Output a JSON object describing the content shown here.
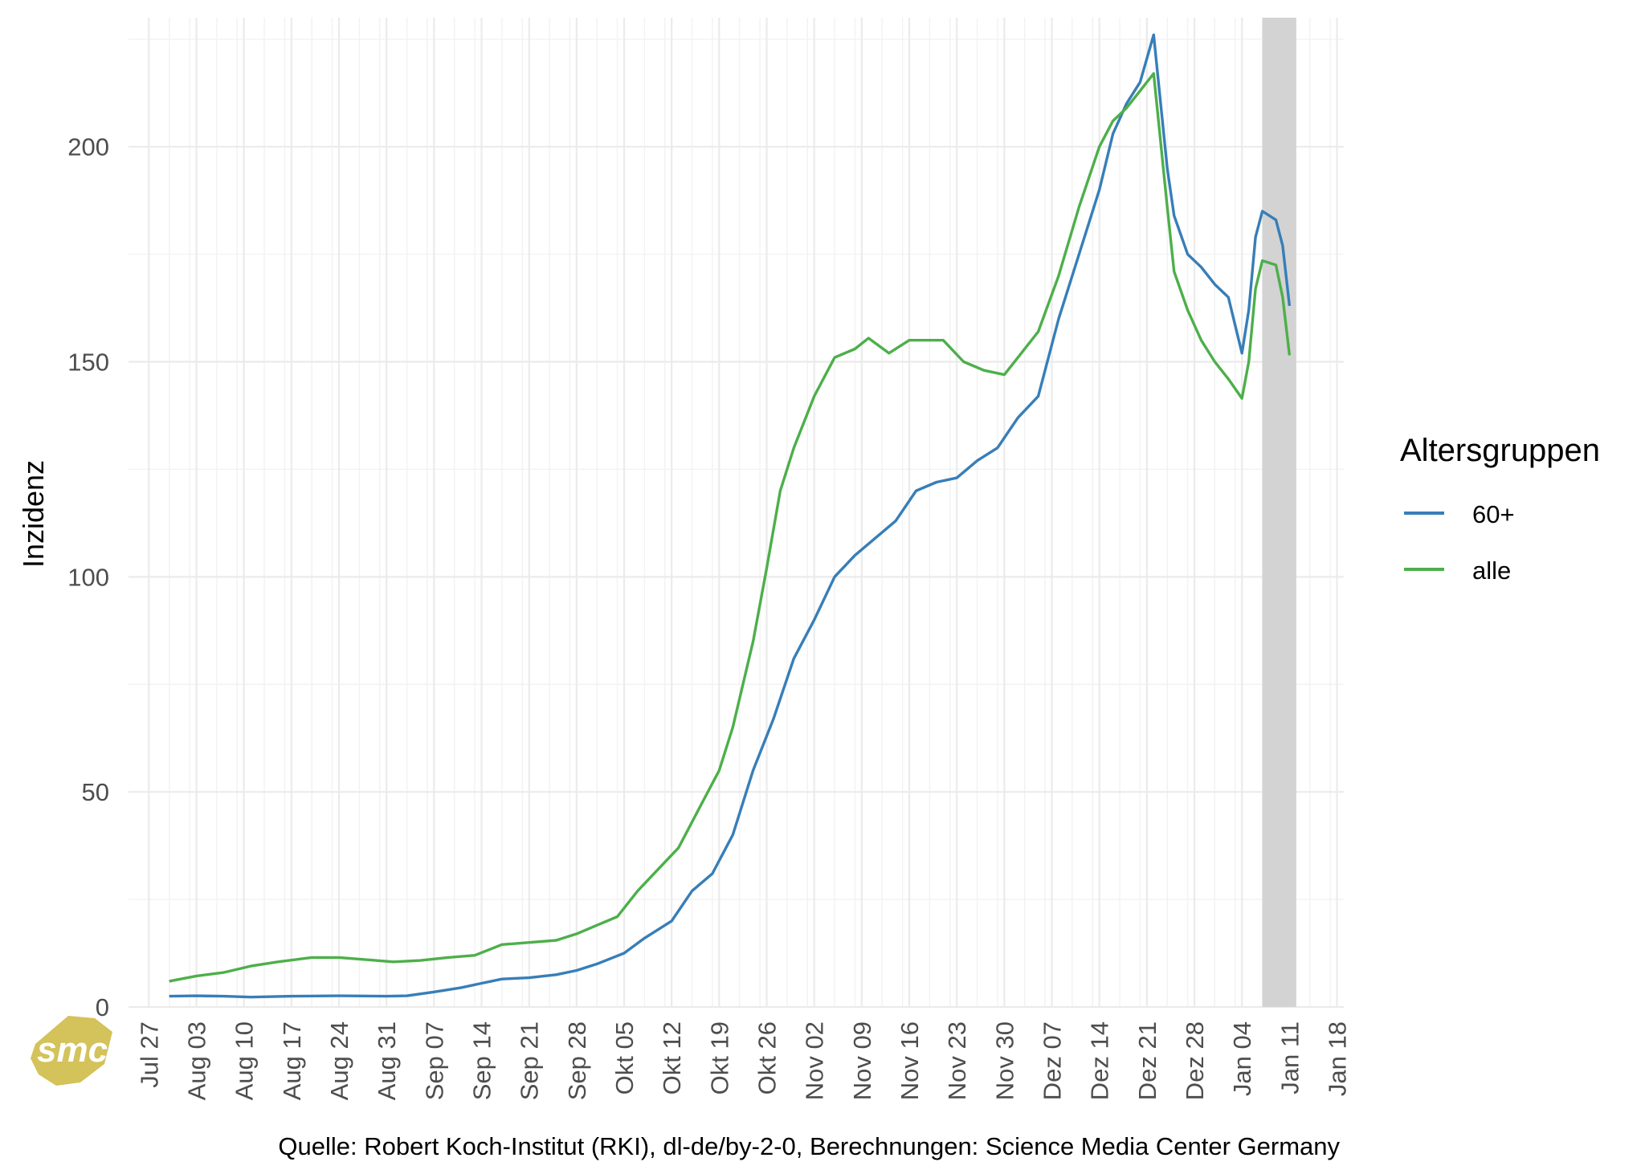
{
  "chart_data": {
    "type": "line",
    "ylabel": "Inzidenz",
    "ylim": [
      0,
      230
    ],
    "yticks": [
      0,
      50,
      100,
      150,
      200
    ],
    "xlim": [
      "2020-07-24",
      "2021-01-19"
    ],
    "x_tick_dates": [
      "2020-07-27",
      "2020-08-03",
      "2020-08-10",
      "2020-08-17",
      "2020-08-24",
      "2020-08-31",
      "2020-09-07",
      "2020-09-14",
      "2020-09-21",
      "2020-09-28",
      "2020-10-05",
      "2020-10-12",
      "2020-10-19",
      "2020-10-26",
      "2020-11-02",
      "2020-11-09",
      "2020-11-16",
      "2020-11-23",
      "2020-11-30",
      "2020-12-07",
      "2020-12-14",
      "2020-12-21",
      "2020-12-28",
      "2021-01-04",
      "2021-01-11",
      "2021-01-18"
    ],
    "x_tick_labels": [
      "Jul 27",
      "Aug 03",
      "Aug 10",
      "Aug 17",
      "Aug 24",
      "Aug 31",
      "Sep 07",
      "Sep 14",
      "Sep 21",
      "Sep 28",
      "Okt 05",
      "Okt 12",
      "Okt 19",
      "Okt 26",
      "Nov 02",
      "Nov 09",
      "Nov 16",
      "Nov 23",
      "Nov 30",
      "Dez 07",
      "Dez 14",
      "Dez 21",
      "Dez 28",
      "Jan 04",
      "Jan 11",
      "Jan 18"
    ],
    "grid": true,
    "shaded_region": {
      "from": "2021-01-07",
      "to": "2021-01-12",
      "color": "#d3d3d3"
    },
    "legend": {
      "title": "Altersgruppen",
      "position": "right"
    },
    "series": [
      {
        "name": "60+",
        "color": "#377eb8",
        "points": [
          [
            "2020-07-30",
            2.5
          ],
          [
            "2020-08-03",
            2.6
          ],
          [
            "2020-08-07",
            2.5
          ],
          [
            "2020-08-11",
            2.3
          ],
          [
            "2020-08-17",
            2.5
          ],
          [
            "2020-08-24",
            2.6
          ],
          [
            "2020-08-31",
            2.5
          ],
          [
            "2020-09-03",
            2.6
          ],
          [
            "2020-09-07",
            3.5
          ],
          [
            "2020-09-11",
            4.5
          ],
          [
            "2020-09-14",
            5.5
          ],
          [
            "2020-09-17",
            6.5
          ],
          [
            "2020-09-21",
            6.8
          ],
          [
            "2020-09-25",
            7.5
          ],
          [
            "2020-09-28",
            8.5
          ],
          [
            "2020-10-01",
            10
          ],
          [
            "2020-10-05",
            12.5
          ],
          [
            "2020-10-08",
            16
          ],
          [
            "2020-10-12",
            20
          ],
          [
            "2020-10-15",
            27
          ],
          [
            "2020-10-18",
            31
          ],
          [
            "2020-10-21",
            40
          ],
          [
            "2020-10-24",
            55
          ],
          [
            "2020-10-27",
            67
          ],
          [
            "2020-10-30",
            81
          ],
          [
            "2020-11-02",
            90
          ],
          [
            "2020-11-05",
            100
          ],
          [
            "2020-11-08",
            105
          ],
          [
            "2020-11-11",
            109
          ],
          [
            "2020-11-14",
            113
          ],
          [
            "2020-11-17",
            120
          ],
          [
            "2020-11-20",
            122
          ],
          [
            "2020-11-23",
            123
          ],
          [
            "2020-11-26",
            127
          ],
          [
            "2020-11-29",
            130
          ],
          [
            "2020-12-02",
            137
          ],
          [
            "2020-12-05",
            142
          ],
          [
            "2020-12-08",
            160
          ],
          [
            "2020-12-11",
            175
          ],
          [
            "2020-12-14",
            190
          ],
          [
            "2020-12-16",
            203
          ],
          [
            "2020-12-18",
            210
          ],
          [
            "2020-12-20",
            215
          ],
          [
            "2020-12-22",
            226
          ],
          [
            "2020-12-24",
            195
          ],
          [
            "2020-12-25",
            184
          ],
          [
            "2020-12-27",
            175
          ],
          [
            "2020-12-29",
            172
          ],
          [
            "2020-12-31",
            168
          ],
          [
            "2021-01-02",
            165
          ],
          [
            "2021-01-04",
            152
          ],
          [
            "2021-01-05",
            162
          ],
          [
            "2021-01-06",
            179
          ],
          [
            "2021-01-07",
            185
          ],
          [
            "2021-01-09",
            183
          ],
          [
            "2021-01-10",
            177
          ],
          [
            "2021-01-11",
            163
          ]
        ]
      },
      {
        "name": "alle",
        "color": "#4daf4a",
        "points": [
          [
            "2020-07-30",
            6
          ],
          [
            "2020-08-03",
            7.2
          ],
          [
            "2020-08-07",
            8
          ],
          [
            "2020-08-11",
            9.5
          ],
          [
            "2020-08-15",
            10.5
          ],
          [
            "2020-08-20",
            11.5
          ],
          [
            "2020-08-24",
            11.5
          ],
          [
            "2020-08-28",
            11
          ],
          [
            "2020-09-01",
            10.5
          ],
          [
            "2020-09-05",
            10.8
          ],
          [
            "2020-09-09",
            11.5
          ],
          [
            "2020-09-13",
            12
          ],
          [
            "2020-09-17",
            14.5
          ],
          [
            "2020-09-21",
            15
          ],
          [
            "2020-09-25",
            15.5
          ],
          [
            "2020-09-28",
            17
          ],
          [
            "2020-10-01",
            19
          ],
          [
            "2020-10-04",
            21
          ],
          [
            "2020-10-07",
            27
          ],
          [
            "2020-10-10",
            32
          ],
          [
            "2020-10-13",
            37
          ],
          [
            "2020-10-16",
            46
          ],
          [
            "2020-10-19",
            55
          ],
          [
            "2020-10-21",
            65
          ],
          [
            "2020-10-24",
            85
          ],
          [
            "2020-10-26",
            102
          ],
          [
            "2020-10-28",
            120
          ],
          [
            "2020-10-30",
            130
          ],
          [
            "2020-11-02",
            142
          ],
          [
            "2020-11-05",
            151
          ],
          [
            "2020-11-08",
            153
          ],
          [
            "2020-11-10",
            155.5
          ],
          [
            "2020-11-13",
            152
          ],
          [
            "2020-11-16",
            155
          ],
          [
            "2020-11-18",
            155
          ],
          [
            "2020-11-21",
            155
          ],
          [
            "2020-11-24",
            150
          ],
          [
            "2020-11-27",
            148
          ],
          [
            "2020-11-30",
            147
          ],
          [
            "2020-12-02",
            151
          ],
          [
            "2020-12-05",
            157
          ],
          [
            "2020-12-08",
            170
          ],
          [
            "2020-12-11",
            186
          ],
          [
            "2020-12-14",
            200
          ],
          [
            "2020-12-16",
            206
          ],
          [
            "2020-12-18",
            209
          ],
          [
            "2020-12-20",
            213
          ],
          [
            "2020-12-22",
            217
          ],
          [
            "2020-12-24",
            186
          ],
          [
            "2020-12-25",
            171
          ],
          [
            "2020-12-27",
            162
          ],
          [
            "2020-12-29",
            155
          ],
          [
            "2020-12-31",
            150
          ],
          [
            "2021-01-02",
            146
          ],
          [
            "2021-01-04",
            141.5
          ],
          [
            "2021-01-05",
            150
          ],
          [
            "2021-01-06",
            167
          ],
          [
            "2021-01-07",
            173.5
          ],
          [
            "2021-01-09",
            172.5
          ],
          [
            "2021-01-10",
            165
          ],
          [
            "2021-01-11",
            151.5
          ]
        ]
      }
    ]
  },
  "caption": "Quelle: Robert Koch-Institut (RKI), dl-de/by-2-0, Berechnungen: Science Media Center Germany",
  "logo": {
    "text": "smc",
    "color": "#d4c25a"
  }
}
